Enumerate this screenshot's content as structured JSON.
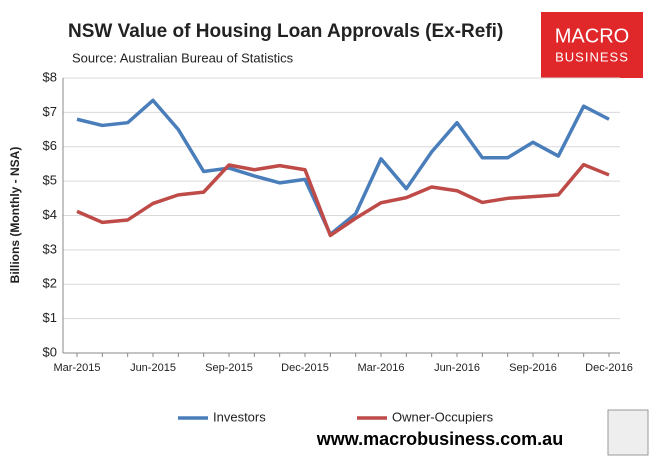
{
  "chart_data": {
    "type": "line",
    "title": "NSW Value of Housing Loan Approvals (Ex-Refi)",
    "subtitle": "Source: Australian Bureau of Statistics",
    "y_label": "Billions (Monthly - NSA)",
    "logo": [
      "MACRO",
      "BUSINESS"
    ],
    "footer": "www.macrobusiness.com.au",
    "categories": [
      "Mar-2015",
      null,
      null,
      "Jun-2015",
      null,
      null,
      "Sep-2015",
      null,
      null,
      "Dec-2015",
      null,
      null,
      "Mar-2016",
      null,
      null,
      "Jun-2016",
      null,
      null,
      "Sep-2016",
      null,
      null,
      "Dec-2016"
    ],
    "series": [
      {
        "name": "Investors",
        "color": "#4a7ebb",
        "values": [
          6.8,
          6.62,
          6.7,
          7.35,
          6.5,
          5.28,
          5.38,
          5.15,
          4.95,
          5.05,
          3.45,
          4.05,
          5.65,
          4.78,
          5.85,
          6.7,
          5.68,
          5.68,
          6.13,
          5.73,
          7.18,
          6.8
        ]
      },
      {
        "name": "Owner-Occupiers",
        "color": "#be4b48",
        "values": [
          4.12,
          3.8,
          3.87,
          4.35,
          4.6,
          4.68,
          5.47,
          5.33,
          5.45,
          5.33,
          3.42,
          3.92,
          4.37,
          4.52,
          4.83,
          4.72,
          4.38,
          4.5,
          4.55,
          4.6,
          5.48,
          5.18
        ]
      }
    ],
    "ylim": [
      0,
      8
    ],
    "yticks": [
      {
        "value": 0,
        "label": "$0"
      },
      {
        "value": 1,
        "label": "$1"
      },
      {
        "value": 2,
        "label": "$2"
      },
      {
        "value": 3,
        "label": "$3"
      },
      {
        "value": 4,
        "label": "$4"
      },
      {
        "value": 5,
        "label": "$5"
      },
      {
        "value": 6,
        "label": "$6"
      },
      {
        "value": 7,
        "label": "$7"
      },
      {
        "value": 8,
        "label": "$8"
      }
    ],
    "grid": true,
    "legend": "bottom"
  }
}
